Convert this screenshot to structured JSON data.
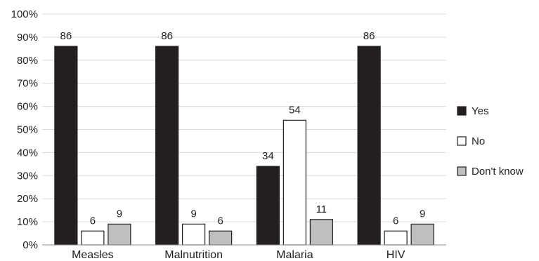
{
  "chart_data": {
    "type": "bar",
    "categories": [
      "Measles",
      "Malnutrition",
      "Malaria",
      "HIV"
    ],
    "series": [
      {
        "name": "Yes",
        "values": [
          86,
          86,
          34,
          86
        ],
        "color": "#231f20"
      },
      {
        "name": "No",
        "values": [
          6,
          9,
          54,
          6
        ],
        "color": "#ffffff"
      },
      {
        "name": "Don't know",
        "values": [
          9,
          6,
          11,
          9
        ],
        "color": "#bfbfbf"
      }
    ],
    "ylim": [
      0,
      100
    ],
    "yticks": [
      "0%",
      "10%",
      "20%",
      "30%",
      "40%",
      "50%",
      "60%",
      "70%",
      "80%",
      "90%",
      "100%"
    ],
    "grid": true,
    "legend_position": "right"
  }
}
